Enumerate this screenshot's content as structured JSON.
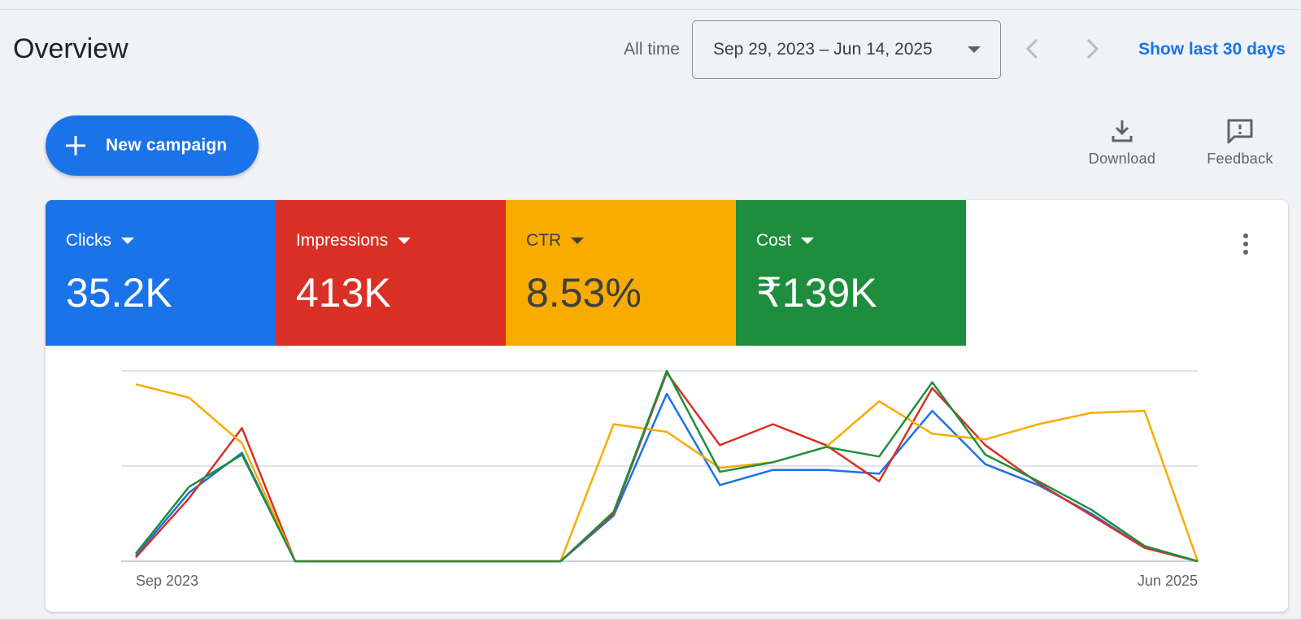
{
  "header": {
    "title": "Overview",
    "all_time_label": "All time",
    "date_range": "Sep 29, 2023 – Jun 14, 2025",
    "show_last_label": "Show last 30 days"
  },
  "toolbar": {
    "new_campaign_label": "New campaign",
    "download_label": "Download",
    "feedback_label": "Feedback"
  },
  "metrics": [
    {
      "label": "Clicks",
      "value": "35.2K",
      "color": "#1a73e8"
    },
    {
      "label": "Impressions",
      "value": "413K",
      "color": "#d93025"
    },
    {
      "label": "CTR",
      "value": "8.53%",
      "color": "#f9ab00"
    },
    {
      "label": "Cost",
      "value": "₹139K",
      "color": "#1e8e3e"
    }
  ],
  "icons": {
    "add": "plus-icon",
    "download": "download-icon",
    "feedback": "feedback-icon",
    "dropdown": "arrow-drop-down-icon",
    "prev": "chevron-left-icon",
    "next": "chevron-right-icon",
    "more": "more-vert-icon"
  },
  "chart_data": {
    "type": "line",
    "x_start_label": "Sep 2023",
    "x_end_label": "Jun 2025",
    "ylim": [
      0,
      1
    ],
    "grid": true,
    "gridlines": 3,
    "series": [
      {
        "color": "#1a73e8",
        "values": [
          0.03,
          0.36,
          0.57,
          0.0,
          0.0,
          0.0,
          0.0,
          0.0,
          0.0,
          0.24,
          0.88,
          0.4,
          0.48,
          0.48,
          0.46,
          0.79,
          0.51,
          0.4,
          0.25,
          0.07,
          0.0
        ]
      },
      {
        "color": "#d93025",
        "values": [
          0.02,
          0.33,
          0.7,
          0.0,
          0.0,
          0.0,
          0.0,
          0.0,
          0.0,
          0.25,
          0.99,
          0.61,
          0.72,
          0.61,
          0.42,
          0.91,
          0.61,
          0.41,
          0.24,
          0.07,
          0.0
        ]
      },
      {
        "color": "#f9ab00",
        "values": [
          0.93,
          0.86,
          0.62,
          0.0,
          0.0,
          0.0,
          0.0,
          0.0,
          0.0,
          0.72,
          0.68,
          0.49,
          0.52,
          0.6,
          0.84,
          0.67,
          0.64,
          0.72,
          0.78,
          0.79,
          0.0
        ]
      },
      {
        "color": "#1e8e3e",
        "values": [
          0.04,
          0.39,
          0.56,
          0.0,
          0.0,
          0.0,
          0.0,
          0.0,
          0.0,
          0.26,
          1.0,
          0.47,
          0.52,
          0.6,
          0.55,
          0.94,
          0.56,
          0.42,
          0.27,
          0.08,
          0.0
        ]
      }
    ]
  }
}
